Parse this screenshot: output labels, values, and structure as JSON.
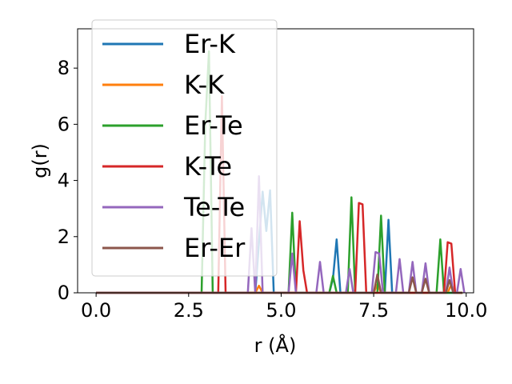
{
  "chart_data": {
    "type": "line",
    "xlabel": "r (Å)",
    "ylabel": "g(r)",
    "xlim": [
      -0.5,
      10.2
    ],
    "ylim": [
      0,
      9.4
    ],
    "xticks": [
      {
        "value": 0.0,
        "label": "0.0"
      },
      {
        "value": 2.5,
        "label": "2.5"
      },
      {
        "value": 5.0,
        "label": "5.0"
      },
      {
        "value": 7.5,
        "label": "7.5"
      },
      {
        "value": 10.0,
        "label": "10.0"
      }
    ],
    "yticks": [
      {
        "value": 0,
        "label": "0"
      },
      {
        "value": 2,
        "label": "2"
      },
      {
        "value": 4,
        "label": "4"
      },
      {
        "value": 6,
        "label": "6"
      },
      {
        "value": 8,
        "label": "8"
      }
    ],
    "grid": false,
    "legend_position": "top-left",
    "series": [
      {
        "name": "Er-K",
        "color": "#1f77b4",
        "points": [
          [
            0,
            0
          ],
          [
            4.3,
            0
          ],
          [
            4.4,
            1.8
          ],
          [
            4.5,
            3.6
          ],
          [
            4.6,
            2.2
          ],
          [
            4.7,
            3.65
          ],
          [
            4.8,
            0
          ],
          [
            6.3,
            0
          ],
          [
            6.4,
            0.5
          ],
          [
            6.5,
            1.9
          ],
          [
            6.6,
            0
          ],
          [
            7.8,
            0
          ],
          [
            7.9,
            2.6
          ],
          [
            8.0,
            0
          ],
          [
            9.9,
            0
          ]
        ]
      },
      {
        "name": "K-K",
        "color": "#ff7f0e",
        "points": [
          [
            0,
            0
          ],
          [
            4.3,
            0
          ],
          [
            4.4,
            0.25
          ],
          [
            4.5,
            0
          ],
          [
            7.5,
            0
          ],
          [
            7.6,
            0.3
          ],
          [
            7.7,
            0
          ],
          [
            9.5,
            0
          ],
          [
            9.6,
            0.3
          ],
          [
            9.7,
            0
          ],
          [
            9.9,
            0
          ]
        ]
      },
      {
        "name": "Er-Te",
        "color": "#2ca02c",
        "points": [
          [
            0,
            0
          ],
          [
            2.85,
            0
          ],
          [
            2.95,
            6.0
          ],
          [
            3.05,
            8.6
          ],
          [
            3.15,
            0
          ],
          [
            5.2,
            0
          ],
          [
            5.3,
            2.85
          ],
          [
            5.4,
            0
          ],
          [
            6.3,
            0
          ],
          [
            6.4,
            0.6
          ],
          [
            6.5,
            0
          ],
          [
            6.8,
            0
          ],
          [
            6.9,
            3.4
          ],
          [
            7.0,
            0
          ],
          [
            7.6,
            0
          ],
          [
            7.7,
            2.75
          ],
          [
            7.8,
            0
          ],
          [
            9.2,
            0
          ],
          [
            9.3,
            1.9
          ],
          [
            9.4,
            0
          ],
          [
            9.9,
            0
          ]
        ]
      },
      {
        "name": "K-Te",
        "color": "#d62728",
        "points": [
          [
            0,
            0
          ],
          [
            3.3,
            0
          ],
          [
            3.4,
            7.0
          ],
          [
            3.5,
            0
          ],
          [
            5.4,
            0
          ],
          [
            5.5,
            2.55
          ],
          [
            5.6,
            0.8
          ],
          [
            5.7,
            0
          ],
          [
            7.0,
            0
          ],
          [
            7.1,
            3.2
          ],
          [
            7.2,
            3.15
          ],
          [
            7.3,
            0
          ],
          [
            9.4,
            0
          ],
          [
            9.5,
            1.8
          ],
          [
            9.6,
            1.75
          ],
          [
            9.7,
            0
          ],
          [
            9.9,
            0
          ]
        ]
      },
      {
        "name": "Te-Te",
        "color": "#9467bd",
        "points": [
          [
            0,
            0
          ],
          [
            4.1,
            0
          ],
          [
            4.2,
            2.3
          ],
          [
            4.3,
            0
          ],
          [
            4.4,
            4.15
          ],
          [
            4.5,
            0
          ],
          [
            5.2,
            0
          ],
          [
            5.3,
            1.4
          ],
          [
            5.4,
            0
          ],
          [
            5.95,
            0
          ],
          [
            6.05,
            1.1
          ],
          [
            6.15,
            0
          ],
          [
            6.75,
            0
          ],
          [
            6.85,
            0.85
          ],
          [
            6.95,
            0
          ],
          [
            7.45,
            0
          ],
          [
            7.55,
            1.45
          ],
          [
            7.65,
            1.4
          ],
          [
            7.75,
            0
          ],
          [
            8.1,
            0
          ],
          [
            8.2,
            1.2
          ],
          [
            8.3,
            0
          ],
          [
            8.45,
            0
          ],
          [
            8.55,
            1.1
          ],
          [
            8.65,
            0
          ],
          [
            8.8,
            0
          ],
          [
            8.9,
            1.05
          ],
          [
            9.0,
            0
          ],
          [
            9.45,
            0
          ],
          [
            9.55,
            0.9
          ],
          [
            9.65,
            0
          ],
          [
            9.75,
            0
          ],
          [
            9.85,
            0.85
          ],
          [
            9.95,
            0
          ]
        ]
      },
      {
        "name": "Er-Er",
        "color": "#8c564b",
        "points": [
          [
            0,
            0
          ],
          [
            7.5,
            0
          ],
          [
            7.6,
            0.65
          ],
          [
            7.7,
            0
          ],
          [
            8.45,
            0
          ],
          [
            8.55,
            0.55
          ],
          [
            8.65,
            0
          ],
          [
            8.8,
            0
          ],
          [
            8.9,
            0.5
          ],
          [
            9.0,
            0
          ],
          [
            9.45,
            0
          ],
          [
            9.55,
            0.45
          ],
          [
            9.65,
            0
          ],
          [
            9.9,
            0
          ]
        ]
      }
    ]
  }
}
